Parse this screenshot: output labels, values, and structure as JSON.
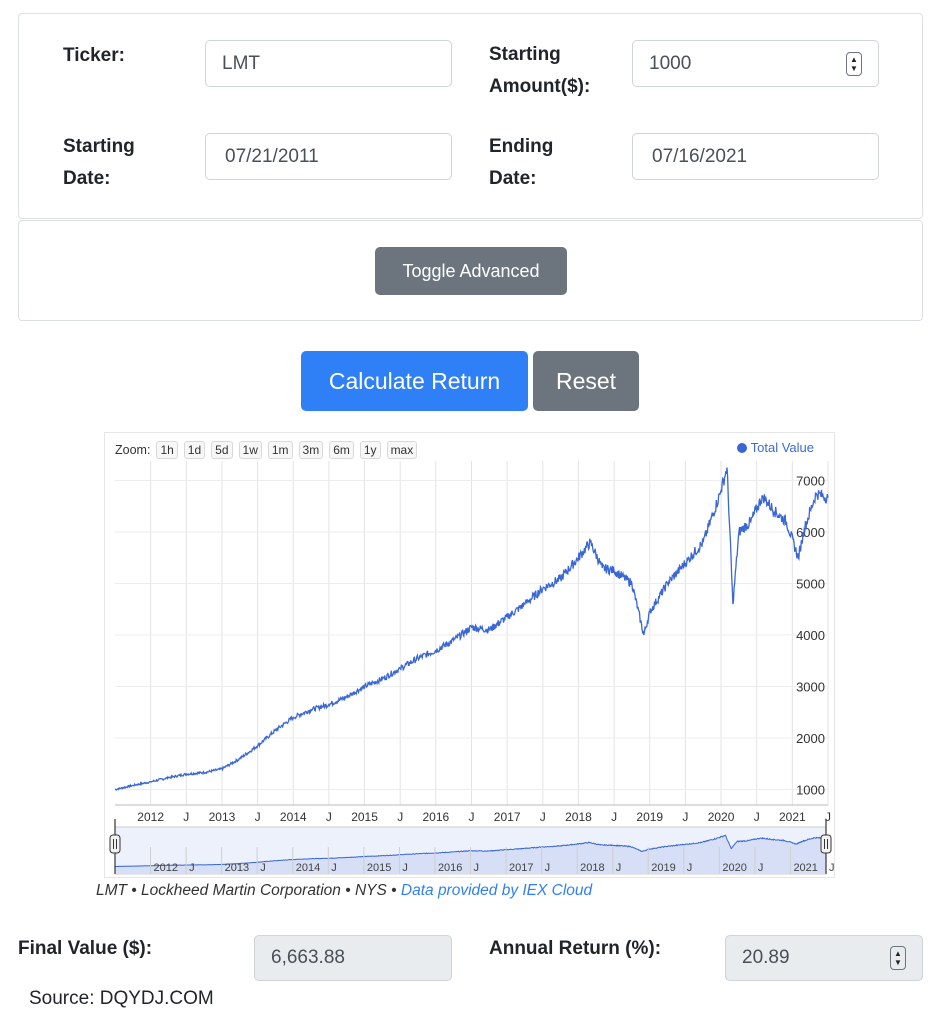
{
  "form": {
    "ticker_label": "Ticker:",
    "ticker_value": "LMT",
    "amount_label_line1": "Starting",
    "amount_label_line2": "Amount($):",
    "amount_value": "1000",
    "start_label_line1": "Starting",
    "start_label_line2": "Date:",
    "start_value": "07/21/2011",
    "end_label_line1": "Ending",
    "end_label_line2": "Date:",
    "end_value": "07/16/2021",
    "toggle_label": "Toggle Advanced"
  },
  "actions": {
    "calculate_label": "Calculate Return",
    "reset_label": "Reset"
  },
  "chart": {
    "zoom_label": "Zoom:",
    "zoom_buttons": [
      "1h",
      "1d",
      "5d",
      "1w",
      "1m",
      "3m",
      "6m",
      "1y",
      "max"
    ],
    "legend": "Total Value",
    "line_color": "#3a67d6",
    "caption_main": "LMT • Lockheed Martin Corporation • NYS • ",
    "caption_link": "Data provided by IEX Cloud"
  },
  "chart_data": {
    "type": "line",
    "title": "",
    "xlabel": "",
    "ylabel": "",
    "series": [
      {
        "name": "Total Value",
        "x": [
          "2011-07",
          "2011-10",
          "2012-01",
          "2012-04",
          "2012-07",
          "2012-10",
          "2013-01",
          "2013-04",
          "2013-07",
          "2013-10",
          "2014-01",
          "2014-04",
          "2014-07",
          "2014-10",
          "2015-01",
          "2015-04",
          "2015-07",
          "2015-10",
          "2016-01",
          "2016-04",
          "2016-07",
          "2016-10",
          "2017-01",
          "2017-04",
          "2017-07",
          "2017-10",
          "2018-01",
          "2018-03",
          "2018-05",
          "2018-07",
          "2018-10",
          "2018-12",
          "2019-01",
          "2019-04",
          "2019-07",
          "2019-10",
          "2020-01",
          "2020-02",
          "2020-03",
          "2020-04",
          "2020-06",
          "2020-08",
          "2020-10",
          "2020-12",
          "2021-02",
          "2021-03",
          "2021-05",
          "2021-07"
        ],
        "y": [
          1000,
          1080,
          1150,
          1230,
          1300,
          1330,
          1400,
          1600,
          1850,
          2150,
          2400,
          2550,
          2650,
          2800,
          3000,
          3150,
          3350,
          3550,
          3700,
          3900,
          4150,
          4100,
          4350,
          4600,
          4900,
          5100,
          5500,
          5800,
          5300,
          5250,
          5000,
          4000,
          4450,
          5000,
          5400,
          5800,
          6800,
          7250,
          4600,
          6000,
          6200,
          6700,
          6400,
          6200,
          5500,
          6050,
          6750,
          6664
        ]
      }
    ],
    "x_ticks": [
      "2012",
      "J",
      "2013",
      "J",
      "2014",
      "J",
      "2015",
      "J",
      "2016",
      "J",
      "2017",
      "J",
      "2018",
      "J",
      "2019",
      "J",
      "2020",
      "J",
      "2021",
      "J"
    ],
    "navigator_ticks": [
      "2012",
      "J",
      "2013",
      "J",
      "2014",
      "J",
      "2015",
      "J",
      "2016",
      "J",
      "2017",
      "J",
      "2018",
      "J",
      "2019",
      "J",
      "2020",
      "J",
      "2021",
      "J"
    ],
    "y_ticks": [
      1000,
      2000,
      3000,
      4000,
      5000,
      6000,
      7000
    ],
    "ylim": [
      700,
      7300
    ],
    "xlim": [
      "2011-07",
      "2021-07"
    ],
    "grid": true,
    "legend_position": "top-right"
  },
  "results": {
    "final_label": "Final Value ($):",
    "final_value": "6,663.88",
    "annual_label": "Annual Return (%):",
    "annual_value": "20.89"
  },
  "source": "Source: DQYDJ.COM"
}
